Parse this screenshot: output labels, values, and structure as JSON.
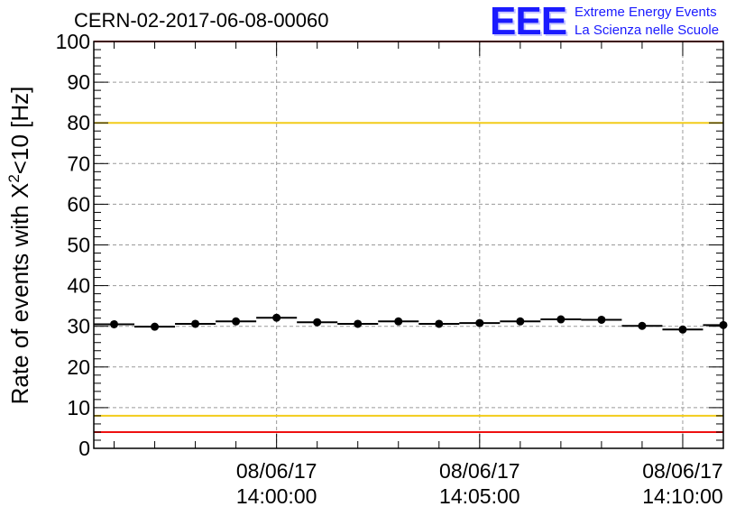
{
  "header": {
    "run_title": "CERN-02-2017-06-08-00060",
    "logo_mark": "EEE",
    "logo_line1": "Extreme Energy Events",
    "logo_line2": "La Scienza nelle Scuole"
  },
  "colors": {
    "limit_red": "#ee1111",
    "limit_yellow": "#f2cc1a",
    "logo_blue": "#1a1aff",
    "marker": "#000000",
    "grid": "#9a9a9a"
  },
  "chart_data": {
    "type": "scatter",
    "ylabel": "Rate of events with X²<10 [Hz]",
    "ylim": [
      0,
      100
    ],
    "y_ticks": [
      0,
      10,
      20,
      30,
      40,
      50,
      60,
      70,
      80,
      90,
      100
    ],
    "x_unit": "minutes after 13:55:30 (08/06/17)",
    "xlim": [
      0,
      15.5
    ],
    "x_ticks": [
      {
        "x": 4.5,
        "date": "08/06/17",
        "time": "14:00:00"
      },
      {
        "x": 9.5,
        "date": "08/06/17",
        "time": "14:05:00"
      },
      {
        "x": 14.5,
        "date": "08/06/17",
        "time": "14:10:00"
      }
    ],
    "grid": true,
    "bin_width": 1,
    "points": [
      {
        "x": 0.5,
        "y": 30.5
      },
      {
        "x": 1.5,
        "y": 29.9
      },
      {
        "x": 2.5,
        "y": 30.6
      },
      {
        "x": 3.5,
        "y": 31.2
      },
      {
        "x": 4.5,
        "y": 32.1
      },
      {
        "x": 5.5,
        "y": 31.0
      },
      {
        "x": 6.5,
        "y": 30.6
      },
      {
        "x": 7.5,
        "y": 31.2
      },
      {
        "x": 8.5,
        "y": 30.6
      },
      {
        "x": 9.5,
        "y": 30.8
      },
      {
        "x": 10.5,
        "y": 31.2
      },
      {
        "x": 11.5,
        "y": 31.7
      },
      {
        "x": 12.5,
        "y": 31.6
      },
      {
        "x": 13.5,
        "y": 30.1
      },
      {
        "x": 14.5,
        "y": 29.2
      },
      {
        "x": 15.5,
        "y": 30.3
      }
    ],
    "reference_lines": [
      {
        "y": 100,
        "color": "red"
      },
      {
        "y": 80,
        "color": "yellow"
      },
      {
        "y": 8,
        "color": "yellow"
      },
      {
        "y": 4,
        "color": "red"
      }
    ]
  }
}
